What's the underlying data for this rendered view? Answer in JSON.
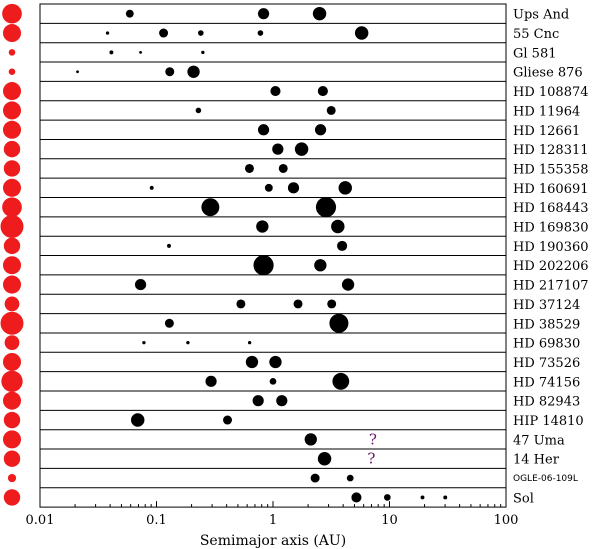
{
  "chart_data": {
    "type": "scatter",
    "xlabel": "Semimajor axis (AU)",
    "xscale": "log",
    "xlim": [
      0.01,
      100
    ],
    "x_ticks": [
      "0.01",
      "0.1",
      "1",
      "10",
      "100"
    ],
    "grid": false,
    "colors": {
      "star": "#ee1c1c",
      "planet": "#000000",
      "uncertain": "#6a1b6a"
    },
    "systems": [
      {
        "name": "Ups And",
        "star": 1.2,
        "planets": [
          {
            "a": 0.059,
            "size": 0.7
          },
          {
            "a": 0.83,
            "size": 1.0
          },
          {
            "a": 2.51,
            "size": 1.2
          }
        ],
        "marks": []
      },
      {
        "name": "55 Cnc",
        "star": 1.1,
        "planets": [
          {
            "a": 0.038,
            "size": 0.3
          },
          {
            "a": 0.115,
            "size": 0.8
          },
          {
            "a": 0.24,
            "size": 0.5
          },
          {
            "a": 0.78,
            "size": 0.5
          },
          {
            "a": 5.77,
            "size": 1.2
          }
        ],
        "marks": []
      },
      {
        "name": "Gl 581",
        "star": 0.4,
        "planets": [
          {
            "a": 0.041,
            "size": 0.35
          },
          {
            "a": 0.073,
            "size": 0.25
          },
          {
            "a": 0.25,
            "size": 0.3
          }
        ],
        "marks": []
      },
      {
        "name": "Gliese 876",
        "star": 0.4,
        "planets": [
          {
            "a": 0.021,
            "size": 0.25
          },
          {
            "a": 0.13,
            "size": 0.8
          },
          {
            "a": 0.208,
            "size": 1.1
          }
        ],
        "marks": []
      },
      {
        "name": "HD 108874",
        "star": 1.1,
        "planets": [
          {
            "a": 1.05,
            "size": 0.9
          },
          {
            "a": 2.68,
            "size": 0.9
          }
        ],
        "marks": []
      },
      {
        "name": "HD 11964",
        "star": 1.1,
        "planets": [
          {
            "a": 0.229,
            "size": 0.5
          },
          {
            "a": 3.16,
            "size": 0.8
          }
        ],
        "marks": []
      },
      {
        "name": "HD 12661",
        "star": 1.1,
        "planets": [
          {
            "a": 0.83,
            "size": 1.0
          },
          {
            "a": 2.56,
            "size": 1.0
          }
        ],
        "marks": []
      },
      {
        "name": "HD 128311",
        "star": 1.0,
        "planets": [
          {
            "a": 1.1,
            "size": 1.0
          },
          {
            "a": 1.76,
            "size": 1.2
          }
        ],
        "marks": []
      },
      {
        "name": "HD 155358",
        "star": 1.0,
        "planets": [
          {
            "a": 0.628,
            "size": 0.8
          },
          {
            "a": 1.224,
            "size": 0.8
          }
        ],
        "marks": []
      },
      {
        "name": "HD 160691",
        "star": 1.1,
        "planets": [
          {
            "a": 0.091,
            "size": 0.35
          },
          {
            "a": 0.921,
            "size": 0.7
          },
          {
            "a": 1.5,
            "size": 1.0
          },
          {
            "a": 4.17,
            "size": 1.2
          }
        ],
        "marks": []
      },
      {
        "name": "HD 168443",
        "star": 1.2,
        "planets": [
          {
            "a": 0.29,
            "size": 1.6
          },
          {
            "a": 2.85,
            "size": 1.8
          }
        ],
        "marks": []
      },
      {
        "name": "HD 169830",
        "star": 1.4,
        "planets": [
          {
            "a": 0.81,
            "size": 1.1
          },
          {
            "a": 3.6,
            "size": 1.2
          }
        ],
        "marks": []
      },
      {
        "name": "HD 190360",
        "star": 1.0,
        "planets": [
          {
            "a": 0.128,
            "size": 0.35
          },
          {
            "a": 3.92,
            "size": 0.9
          }
        ],
        "marks": []
      },
      {
        "name": "HD 202206",
        "star": 1.1,
        "planets": [
          {
            "a": 0.83,
            "size": 1.8
          },
          {
            "a": 2.55,
            "size": 1.1
          }
        ],
        "marks": []
      },
      {
        "name": "HD 217107",
        "star": 1.1,
        "planets": [
          {
            "a": 0.073,
            "size": 1.0
          },
          {
            "a": 4.41,
            "size": 1.1
          }
        ],
        "marks": []
      },
      {
        "name": "HD 37124",
        "star": 0.9,
        "planets": [
          {
            "a": 0.53,
            "size": 0.8
          },
          {
            "a": 1.64,
            "size": 0.8
          },
          {
            "a": 3.19,
            "size": 0.8
          }
        ],
        "marks": []
      },
      {
        "name": "HD 38529",
        "star": 1.4,
        "planets": [
          {
            "a": 0.129,
            "size": 0.8
          },
          {
            "a": 3.68,
            "size": 1.7
          }
        ],
        "marks": []
      },
      {
        "name": "HD 69830",
        "star": 0.9,
        "planets": [
          {
            "a": 0.078,
            "size": 0.3
          },
          {
            "a": 0.186,
            "size": 0.3
          },
          {
            "a": 0.63,
            "size": 0.3
          }
        ],
        "marks": []
      },
      {
        "name": "HD 73526",
        "star": 1.1,
        "planets": [
          {
            "a": 0.66,
            "size": 1.1
          },
          {
            "a": 1.05,
            "size": 1.1
          }
        ],
        "marks": []
      },
      {
        "name": "HD 74156",
        "star": 1.3,
        "planets": [
          {
            "a": 0.294,
            "size": 1.0
          },
          {
            "a": 1.0,
            "size": 0.6
          },
          {
            "a": 3.82,
            "size": 1.5
          }
        ],
        "marks": []
      },
      {
        "name": "HD 82943",
        "star": 1.1,
        "planets": [
          {
            "a": 0.746,
            "size": 1.0
          },
          {
            "a": 1.19,
            "size": 1.0
          }
        ],
        "marks": []
      },
      {
        "name": "HIP 14810",
        "star": 1.0,
        "planets": [
          {
            "a": 0.069,
            "size": 1.2
          },
          {
            "a": 0.407,
            "size": 0.8
          }
        ],
        "marks": []
      },
      {
        "name": "47 Uma",
        "star": 1.1,
        "planets": [
          {
            "a": 2.11,
            "size": 1.1
          }
        ],
        "marks": [
          {
            "a": 7.2,
            "label": "?"
          }
        ]
      },
      {
        "name": "14 Her",
        "star": 1.0,
        "planets": [
          {
            "a": 2.77,
            "size": 1.2
          }
        ],
        "marks": [
          {
            "a": 7.0,
            "label": "?"
          }
        ]
      },
      {
        "name": "OGLE-06-109L",
        "star": 0.5,
        "small_label": true,
        "planets": [
          {
            "a": 2.3,
            "size": 0.8
          },
          {
            "a": 4.6,
            "size": 0.6
          }
        ],
        "marks": []
      },
      {
        "name": "Sol",
        "star": 1.0,
        "planets": [
          {
            "a": 5.2,
            "size": 0.9
          },
          {
            "a": 9.58,
            "size": 0.6
          },
          {
            "a": 19.2,
            "size": 0.35
          },
          {
            "a": 30.1,
            "size": 0.35
          }
        ],
        "marks": []
      }
    ]
  }
}
